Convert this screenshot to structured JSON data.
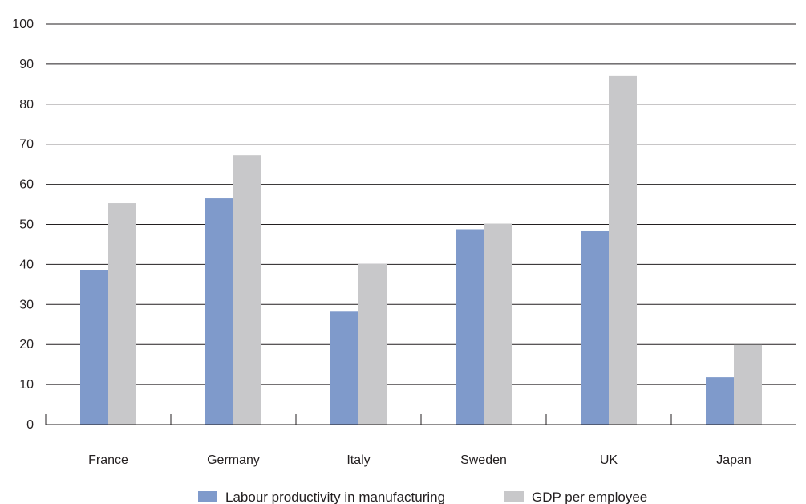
{
  "chart_data": {
    "type": "bar",
    "title": "",
    "xlabel": "",
    "ylabel": "",
    "categories": [
      "France",
      "Germany",
      "Italy",
      "Sweden",
      "UK",
      "Japan"
    ],
    "series": [
      {
        "name": "Labour productivity in manufacturing",
        "values": [
          38.5,
          56.5,
          28.2,
          48.8,
          48.3,
          11.8
        ],
        "color": "#7f9acb"
      },
      {
        "name": "GDP per employee",
        "values": [
          55.3,
          67.3,
          40.1,
          50.2,
          87,
          19.9
        ],
        "color": "#c8c8ca"
      }
    ],
    "ylim": [
      0,
      100
    ],
    "yticks": [
      0,
      10,
      20,
      30,
      40,
      50,
      60,
      70,
      80,
      90,
      100
    ],
    "grid": true,
    "legend_position": "bottom"
  }
}
